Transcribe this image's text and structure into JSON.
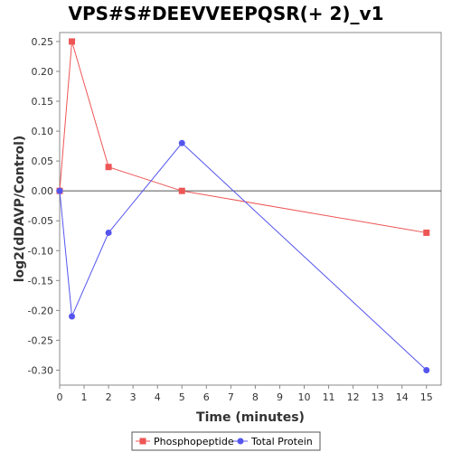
{
  "chart_data": {
    "type": "line",
    "title": "VPS#S#DEEVVEEPQSR(+ 2)_v1",
    "xlabel": "Time (minutes)",
    "ylabel": "log2(dDAVP/Control)",
    "xlim": [
      0,
      15.6
    ],
    "ylim": [
      -0.325,
      0.265
    ],
    "x_ticks": [
      0,
      1,
      2,
      3,
      4,
      5,
      6,
      7,
      8,
      9,
      10,
      11,
      12,
      13,
      14,
      15
    ],
    "y_ticks": [
      -0.3,
      -0.25,
      -0.2,
      -0.15,
      -0.1,
      -0.05,
      0.0,
      0.05,
      0.1,
      0.15,
      0.2,
      0.25
    ],
    "legend_position": "bottom",
    "series": [
      {
        "name": "Phosphopeptide",
        "color": "#ee5555",
        "marker": "square",
        "x": [
          0,
          0.5,
          2,
          5,
          15
        ],
        "y": [
          0.0,
          0.25,
          0.04,
          0.0,
          -0.07
        ]
      },
      {
        "name": "Total Protein",
        "color": "#5555ee",
        "marker": "circle",
        "x": [
          0,
          0.5,
          2,
          5,
          15
        ],
        "y": [
          0.0,
          -0.21,
          -0.07,
          0.08,
          -0.3
        ]
      }
    ]
  }
}
